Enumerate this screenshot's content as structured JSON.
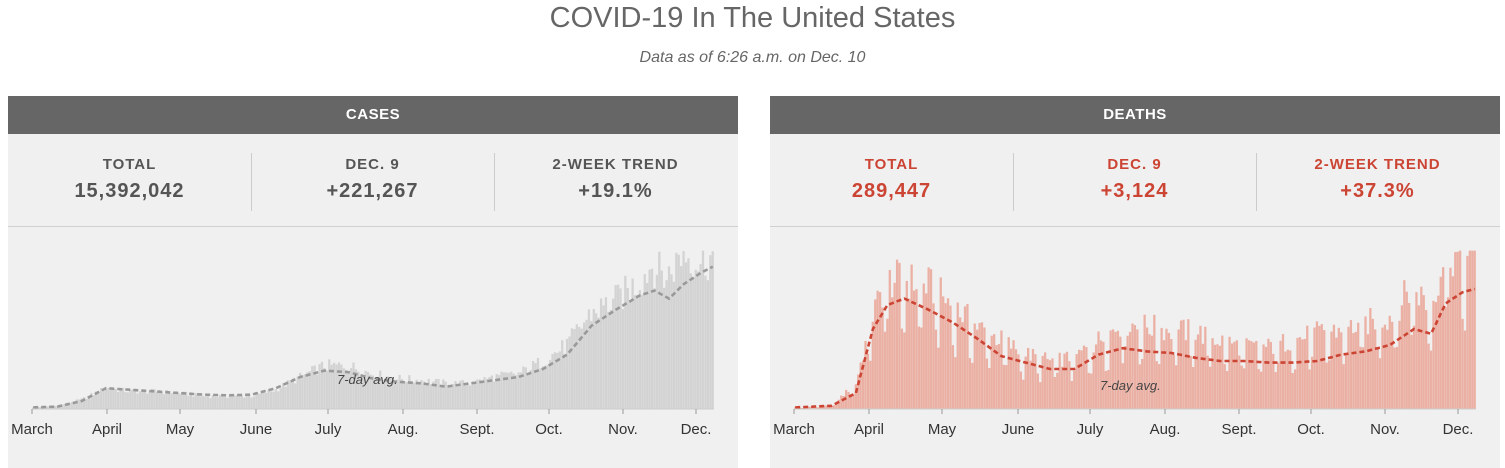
{
  "page": {
    "title": "COVID-19 In The United States",
    "subtitle": "Data as of 6:26 a.m. on Dec. 10"
  },
  "cases": {
    "header": "CASES",
    "stats": [
      {
        "label": "TOTAL",
        "value": "15,392,042"
      },
      {
        "label": "DEC. 9",
        "value": "+221,267"
      },
      {
        "label": "2-WEEK TREND",
        "value": "+19.1%"
      }
    ]
  },
  "deaths": {
    "header": "DEATHS",
    "stats": [
      {
        "label": "TOTAL",
        "value": "289,447"
      },
      {
        "label": "DEC. 9",
        "value": "+3,124"
      },
      {
        "label": "2-WEEK TREND",
        "value": "+37.3%"
      }
    ]
  },
  "colors": {
    "cases_bars": "#d3d3d3",
    "cases_avg": "#999999",
    "deaths_bars": "#ebb0a4",
    "deaths_avg": "#cc4433"
  },
  "chart_data": [
    {
      "type": "bar",
      "name": "cases",
      "x_ticks": [
        "March",
        "April",
        "May",
        "June",
        "July",
        "Aug.",
        "Sept.",
        "Oct.",
        "Nov.",
        "Dec."
      ],
      "y_relative": true,
      "daily_keypoints": [
        [
          0,
          0.01
        ],
        [
          10,
          0.02
        ],
        [
          20,
          0.06
        ],
        [
          30,
          0.13
        ],
        [
          40,
          0.11
        ],
        [
          50,
          0.11
        ],
        [
          60,
          0.1
        ],
        [
          70,
          0.08
        ],
        [
          80,
          0.08
        ],
        [
          90,
          0.08
        ],
        [
          100,
          0.12
        ],
        [
          110,
          0.2
        ],
        [
          120,
          0.27
        ],
        [
          130,
          0.27
        ],
        [
          140,
          0.22
        ],
        [
          150,
          0.19
        ],
        [
          160,
          0.18
        ],
        [
          170,
          0.16
        ],
        [
          180,
          0.16
        ],
        [
          190,
          0.2
        ],
        [
          200,
          0.22
        ],
        [
          210,
          0.3
        ],
        [
          220,
          0.4
        ],
        [
          230,
          0.6
        ],
        [
          240,
          0.68
        ],
        [
          250,
          0.8
        ],
        [
          255,
          0.9
        ],
        [
          261,
          0.82
        ],
        [
          268,
          0.98
        ],
        [
          275,
          0.91
        ],
        [
          280,
          0.95
        ]
      ],
      "avg_keypoints": [
        [
          0,
          0.01
        ],
        [
          10,
          0.015
        ],
        [
          20,
          0.05
        ],
        [
          30,
          0.13
        ],
        [
          40,
          0.12
        ],
        [
          50,
          0.11
        ],
        [
          60,
          0.1
        ],
        [
          70,
          0.09
        ],
        [
          80,
          0.085
        ],
        [
          90,
          0.09
        ],
        [
          100,
          0.13
        ],
        [
          110,
          0.2
        ],
        [
          120,
          0.24
        ],
        [
          130,
          0.23
        ],
        [
          140,
          0.19
        ],
        [
          150,
          0.17
        ],
        [
          160,
          0.16
        ],
        [
          170,
          0.14
        ],
        [
          180,
          0.16
        ],
        [
          190,
          0.18
        ],
        [
          200,
          0.2
        ],
        [
          210,
          0.25
        ],
        [
          220,
          0.34
        ],
        [
          230,
          0.52
        ],
        [
          240,
          0.62
        ],
        [
          250,
          0.71
        ],
        [
          256,
          0.74
        ],
        [
          262,
          0.69
        ],
        [
          268,
          0.78
        ],
        [
          275,
          0.85
        ],
        [
          280,
          0.89
        ]
      ],
      "avg_label": "7-day avg."
    },
    {
      "type": "bar",
      "name": "deaths",
      "x_ticks": [
        "March",
        "April",
        "May",
        "June",
        "July",
        "Aug.",
        "Sept.",
        "Oct.",
        "Nov.",
        "Dec."
      ],
      "y_relative": true,
      "daily_keypoints": [
        [
          0,
          0.01
        ],
        [
          15,
          0.02
        ],
        [
          25,
          0.15
        ],
        [
          32,
          0.55
        ],
        [
          38,
          0.75
        ],
        [
          45,
          0.75
        ],
        [
          55,
          0.72
        ],
        [
          65,
          0.6
        ],
        [
          75,
          0.48
        ],
        [
          85,
          0.4
        ],
        [
          95,
          0.32
        ],
        [
          105,
          0.28
        ],
        [
          115,
          0.3
        ],
        [
          125,
          0.4
        ],
        [
          135,
          0.5
        ],
        [
          145,
          0.48
        ],
        [
          155,
          0.46
        ],
        [
          165,
          0.45
        ],
        [
          175,
          0.4
        ],
        [
          185,
          0.36
        ],
        [
          195,
          0.36
        ],
        [
          205,
          0.4
        ],
        [
          215,
          0.44
        ],
        [
          225,
          0.46
        ],
        [
          235,
          0.5
        ],
        [
          245,
          0.54
        ],
        [
          255,
          0.72
        ],
        [
          262,
          0.58
        ],
        [
          268,
          0.95
        ],
        [
          275,
          0.85
        ],
        [
          280,
          0.9
        ]
      ],
      "avg_keypoints": [
        [
          0,
          0.01
        ],
        [
          15,
          0.02
        ],
        [
          25,
          0.1
        ],
        [
          32,
          0.5
        ],
        [
          38,
          0.65
        ],
        [
          45,
          0.69
        ],
        [
          55,
          0.62
        ],
        [
          65,
          0.54
        ],
        [
          75,
          0.44
        ],
        [
          85,
          0.33
        ],
        [
          95,
          0.29
        ],
        [
          105,
          0.25
        ],
        [
          115,
          0.25
        ],
        [
          125,
          0.34
        ],
        [
          135,
          0.38
        ],
        [
          145,
          0.36
        ],
        [
          155,
          0.35
        ],
        [
          165,
          0.32
        ],
        [
          175,
          0.3
        ],
        [
          185,
          0.3
        ],
        [
          195,
          0.29
        ],
        [
          205,
          0.29
        ],
        [
          215,
          0.3
        ],
        [
          225,
          0.34
        ],
        [
          235,
          0.36
        ],
        [
          245,
          0.4
        ],
        [
          255,
          0.5
        ],
        [
          262,
          0.47
        ],
        [
          268,
          0.66
        ],
        [
          275,
          0.73
        ],
        [
          280,
          0.75
        ]
      ],
      "avg_label": "7-day avg."
    }
  ]
}
